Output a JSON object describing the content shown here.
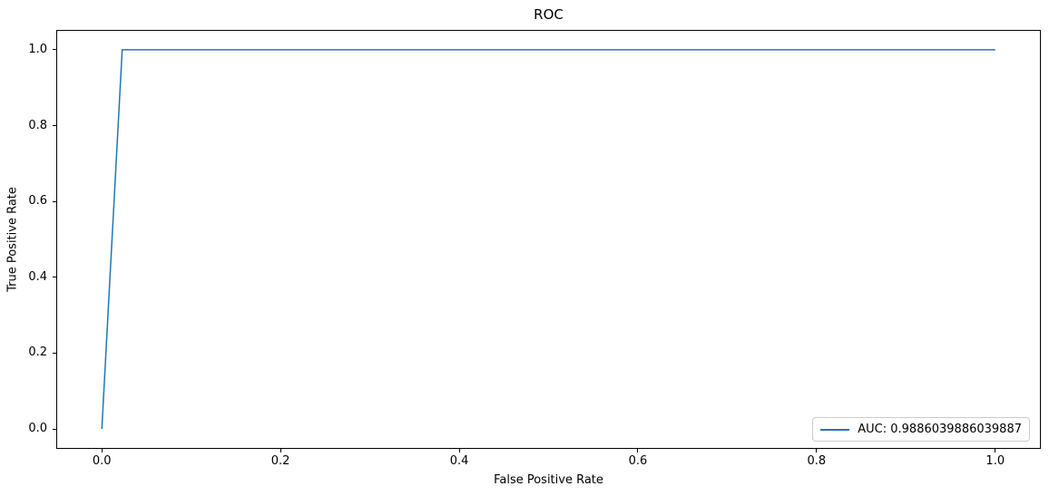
{
  "chart_data": {
    "type": "line",
    "title": "ROC",
    "xlabel": "False Positive Rate",
    "ylabel": "True Positive Rate",
    "x_ticks": [
      0.0,
      0.2,
      0.4,
      0.6,
      0.8,
      1.0
    ],
    "y_ticks": [
      0.0,
      0.2,
      0.4,
      0.6,
      0.8,
      1.0
    ],
    "xlim": [
      -0.05,
      1.05
    ],
    "ylim": [
      -0.05,
      1.05
    ],
    "grid": false,
    "legend_position": "lower right",
    "series": [
      {
        "name": "AUC: 0.9886039886039887",
        "color": "#1f77b4",
        "x": [
          0.0,
          0.0228,
          1.0
        ],
        "y": [
          0.0,
          1.0,
          1.0
        ]
      }
    ]
  },
  "colors": {
    "line": "#1f77b4",
    "spine": "#000000",
    "legend_border": "#cccccc",
    "background": "#ffffff"
  }
}
